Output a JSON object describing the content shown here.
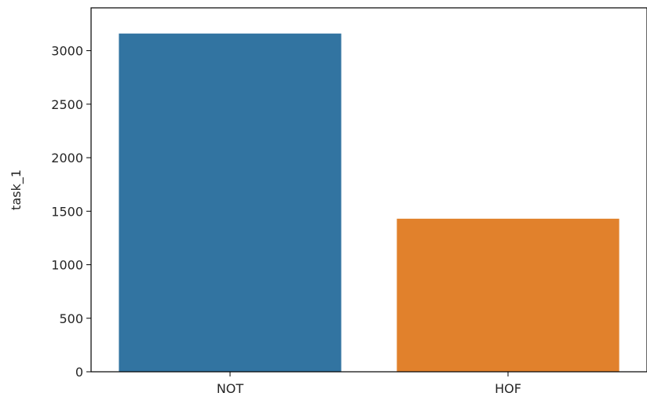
{
  "chart_data": {
    "type": "bar",
    "categories": [
      "NOT",
      "HOF"
    ],
    "values": [
      3160,
      1430
    ],
    "colors": [
      "#3274a1",
      "#e1812c"
    ],
    "xlabel": "",
    "ylabel": "task_1",
    "ylim": [
      0,
      3400
    ],
    "yticks": [
      0,
      500,
      1000,
      1500,
      2000,
      2500,
      3000
    ],
    "grid": false
  }
}
